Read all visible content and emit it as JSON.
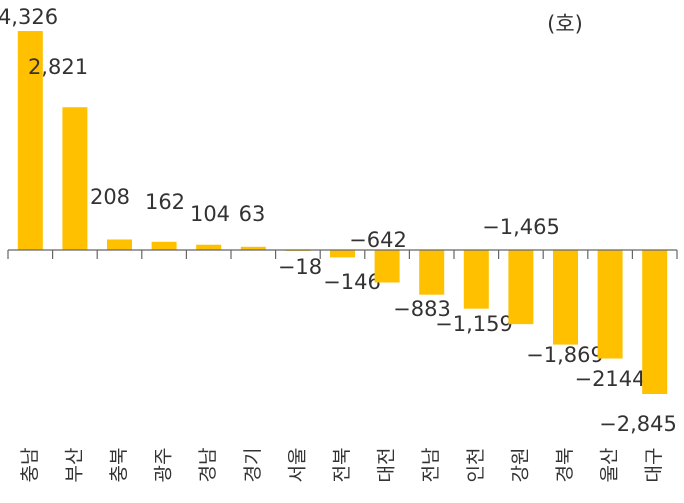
{
  "chart_data": {
    "type": "bar",
    "annotation": "(호)",
    "categories": [
      "충남",
      "부산",
      "충북",
      "광주",
      "경남",
      "경기",
      "서울",
      "전북",
      "대전",
      "전남",
      "인천",
      "강원",
      "경북",
      "울산",
      "대구"
    ],
    "values": [
      4326,
      2821,
      208,
      162,
      104,
      63,
      -18,
      -146,
      -642,
      -883,
      -1159,
      -1465,
      -1869,
      -2144,
      -2845
    ],
    "value_labels": [
      "4,326",
      "2,821",
      "208",
      "162",
      "104",
      "63",
      "−18",
      "−146",
      "−642",
      "−883",
      "−1,159",
      "−1,465",
      "−1,869",
      "−2144",
      "−2,845"
    ],
    "color": "#ffc000"
  }
}
